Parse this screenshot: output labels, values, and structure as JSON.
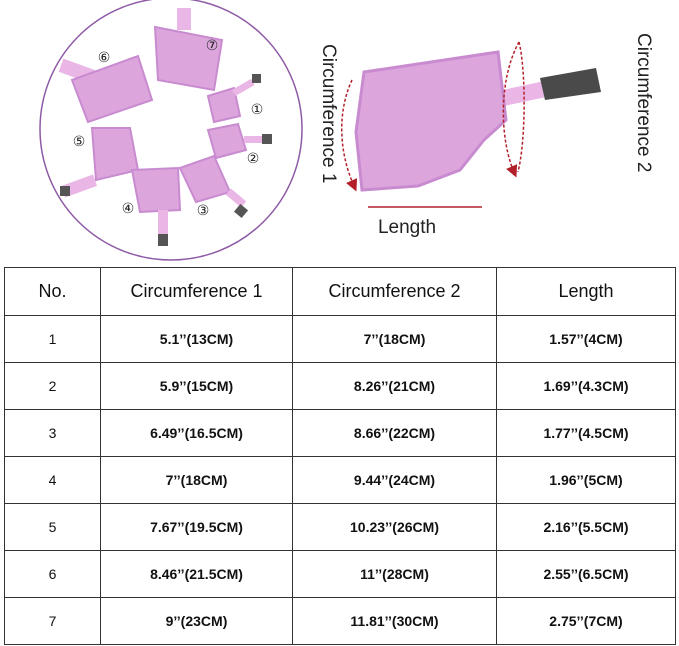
{
  "diagram": {
    "size_markers": [
      "①",
      "②",
      "③",
      "④",
      "⑤",
      "⑥",
      "⑦"
    ],
    "label_circumference_1": "Circumference 1",
    "label_circumference_2": "Circumference 2",
    "label_length": "Length",
    "colors": {
      "fabric": "#dca6dc",
      "fabric_edge": "#c98bd0",
      "ring": "#8e5aa6",
      "arrow": "#b3202a",
      "buckle": "#4a4a4a"
    }
  },
  "table": {
    "headers": [
      "No.",
      "Circumference 1",
      "Circumference 2",
      "Length"
    ],
    "rows": [
      [
        "1",
        "5.1’’(13CM)",
        "7’’(18CM)",
        "1.57’’(4CM)"
      ],
      [
        "2",
        "5.9’’(15CM)",
        "8.26’’(21CM)",
        "1.69’’(4.3CM)"
      ],
      [
        "3",
        "6.49’’(16.5CM)",
        "8.66’’(22CM)",
        "1.77’’(4.5CM)"
      ],
      [
        "4",
        "7’’(18CM)",
        "9.44’’(24CM)",
        "1.96’’(5CM)"
      ],
      [
        "5",
        "7.67’’(19.5CM)",
        "10.23’’(26CM)",
        "2.16’’(5.5CM)"
      ],
      [
        "6",
        "8.46’’(21.5CM)",
        "11’’(28CM)",
        "2.55’’(6.5CM)"
      ],
      [
        "7",
        "9’’(23CM)",
        "11.81’’(30CM)",
        "2.75’’(7CM)"
      ]
    ]
  }
}
